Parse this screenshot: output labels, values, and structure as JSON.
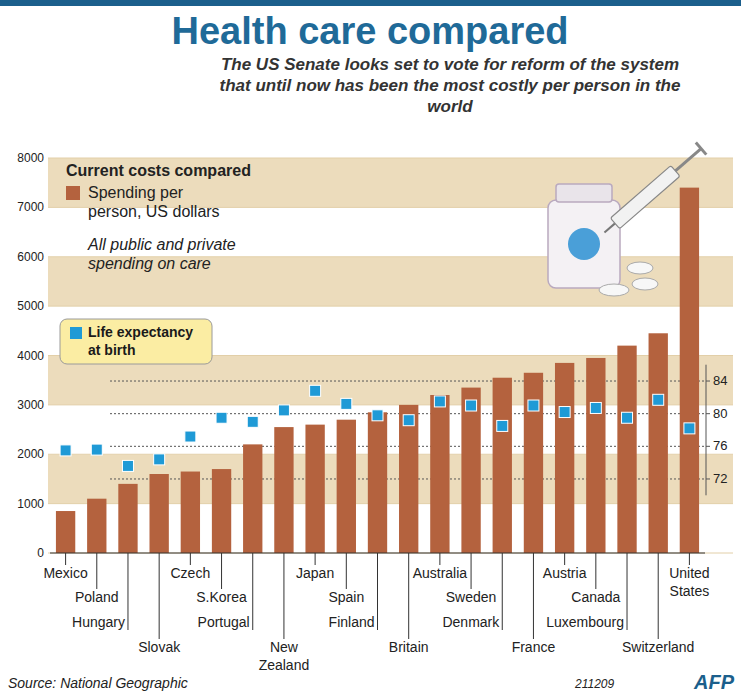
{
  "chart_data": {
    "type": "bar",
    "title": "Health care compared",
    "subtitle": "The US Senate looks set to vote for reform of the system that until now has been the most costly per person in the world",
    "annotations": [
      "Current costs compared",
      "All public and private spending on care",
      "Source: National Geographic",
      "211209",
      "AFP"
    ],
    "categories": [
      "Mexico",
      "Poland",
      "Hungary",
      "Slovak",
      "Czech",
      "S.Korea",
      "Portugal",
      "New Zealand",
      "Japan",
      "Spain",
      "Finland",
      "Britain",
      "Australia",
      "Sweden",
      "Denmark",
      "France",
      "Austria",
      "Canada",
      "Luxembourg",
      "Switzerland",
      "United States"
    ],
    "series": [
      {
        "name": "Spending per person, US dollars",
        "type": "bar",
        "color": "#b4623e",
        "values": [
          850,
          1100,
          1400,
          1600,
          1650,
          1700,
          2200,
          2550,
          2600,
          2700,
          2850,
          3000,
          3200,
          3350,
          3550,
          3650,
          3850,
          3950,
          4200,
          4450,
          7400
        ]
      },
      {
        "name": "Life expectancy at birth",
        "type": "scatter",
        "marker": "square",
        "color": "#1f9ad6",
        "axis": "y2",
        "values": [
          75.5,
          75.6,
          73.6,
          74.4,
          77.2,
          79.5,
          79,
          80.4,
          82.8,
          81.2,
          79.8,
          79.2,
          81.5,
          81,
          78.5,
          81,
          80.2,
          80.7,
          79.5,
          81.7,
          78.2
        ]
      }
    ],
    "ylim": [
      0,
      8000
    ],
    "yticks": [
      0,
      1000,
      2000,
      3000,
      4000,
      5000,
      6000,
      7000,
      8000
    ],
    "y2lim": [
      70,
      86
    ],
    "y2ticks": [
      72,
      76,
      80,
      84
    ],
    "grid": true,
    "legend": "upper left"
  }
}
